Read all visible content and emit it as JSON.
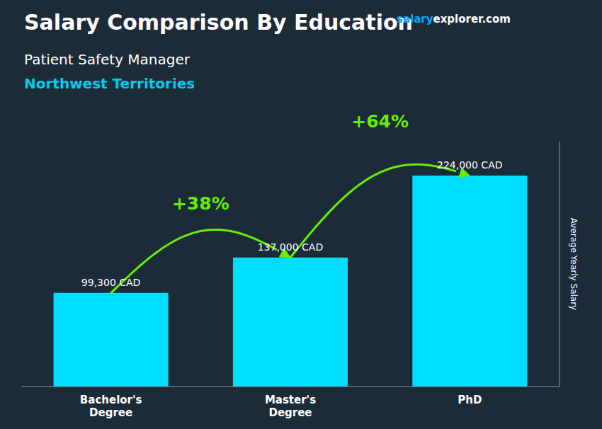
{
  "chart_data": {
    "type": "bar",
    "title": "Salary Comparison By Education",
    "subtitle": "Patient Safety Manager",
    "location": "Northwest Territories",
    "watermark": [
      "salary",
      "explorer",
      ".com"
    ],
    "categories": [
      "Bachelor's\nDegree",
      "Master's\nDegree",
      "PhD"
    ],
    "values": [
      99300,
      137000,
      224000
    ],
    "value_labels": [
      "99,300 CAD",
      "137,000 CAD",
      "224,000 CAD"
    ],
    "data_labels": true,
    "color": "#00ddff",
    "ylim": [
      0,
      260000
    ],
    "tick_labels": "x",
    "ylabel": "Average Yearly Salary",
    "annotations": [
      {
        "text": "+38%",
        "from": "Bachelor's\nDegree",
        "to": "Master's\nDegree",
        "color": "#66ee00"
      },
      {
        "text": "+64%",
        "from": "Master's\nDegree",
        "to": "PhD",
        "color": "#66ee00"
      }
    ]
  }
}
